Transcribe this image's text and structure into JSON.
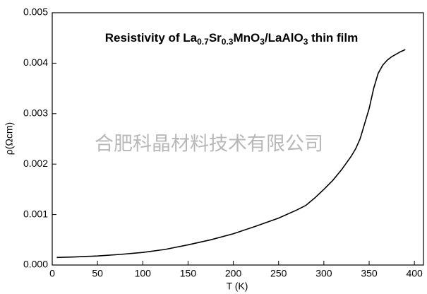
{
  "chart_data": {
    "type": "line",
    "title": [
      "Resistivity of La",
      "0.7",
      "Sr",
      "0.3",
      "MnO",
      "3",
      "/LaAlO",
      "3",
      " thin film"
    ],
    "watermark": "合肥科晶材料技术有限公司",
    "x_label": "T (K)",
    "y_label": "ρ(Ωcm)",
    "x": [
      5,
      25,
      50,
      75,
      100,
      125,
      150,
      175,
      200,
      225,
      250,
      270,
      280,
      290,
      300,
      310,
      320,
      330,
      335,
      340,
      345,
      350,
      355,
      360,
      365,
      370,
      375,
      380,
      385,
      390
    ],
    "series": [
      {
        "name": "ρ",
        "color": "#000000",
        "values": [
          0.00015,
          0.00016,
          0.00018,
          0.00021,
          0.00025,
          0.00031,
          0.0004,
          0.0005,
          0.00062,
          0.00077,
          0.00093,
          0.00109,
          0.00118,
          0.00133,
          0.0015,
          0.00168,
          0.0019,
          0.00215,
          0.0023,
          0.0025,
          0.0028,
          0.0031,
          0.0035,
          0.0038,
          0.00396,
          0.00406,
          0.00413,
          0.00418,
          0.00423,
          0.00427
        ]
      }
    ],
    "xlim": [
      0,
      410
    ],
    "ylim": [
      0,
      0.005
    ],
    "xticks": [
      0,
      50,
      100,
      150,
      200,
      250,
      300,
      350,
      400
    ],
    "yticks": [
      {
        "value": 0,
        "label": "0.000"
      },
      {
        "value": 0.001,
        "label": "0.001"
      },
      {
        "value": 0.002,
        "label": "0.002"
      },
      {
        "value": 0.003,
        "label": "0.003"
      },
      {
        "value": 0.004,
        "label": "0.004"
      },
      {
        "value": 0.005,
        "label": "0.005"
      }
    ],
    "grid": false
  }
}
